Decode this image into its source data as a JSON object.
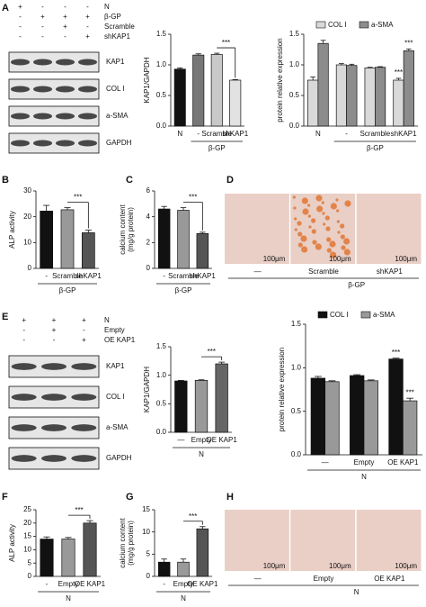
{
  "panel_labels": [
    "A",
    "B",
    "C",
    "D",
    "E",
    "F",
    "G",
    "H"
  ],
  "blot_A": {
    "conditions": [
      {
        "name": "N",
        "signs": [
          "+",
          "-",
          "-",
          "-"
        ]
      },
      {
        "name": "β-GP",
        "signs": [
          "-",
          "+",
          "+",
          "+"
        ]
      },
      {
        "name": "Scramble",
        "signs": [
          "-",
          "-",
          "+",
          "-"
        ]
      },
      {
        "name": "shKAP1",
        "signs": [
          "-",
          "-",
          "-",
          "+"
        ]
      }
    ],
    "bands": [
      "KAP1",
      "COL I",
      "a-SMA",
      "GAPDH"
    ]
  },
  "blot_E": {
    "conditions": [
      {
        "name": "N",
        "signs": [
          "+",
          "+",
          "+"
        ]
      },
      {
        "name": "Empty",
        "signs": [
          "-",
          "+",
          "-"
        ]
      },
      {
        "name": "OE KAP1",
        "signs": [
          "-",
          "-",
          "+"
        ]
      }
    ],
    "bands": [
      "KAP1",
      "COL I",
      "a-SMA",
      "GAPDH"
    ]
  },
  "image_D": {
    "scale": "100μm",
    "labels": [
      "—",
      "Scramble",
      "shKAP1"
    ],
    "group": "β-GP"
  },
  "image_H": {
    "scale": "100μm",
    "labels": [
      "—",
      "Empty",
      "OE KAP1"
    ],
    "group": "N"
  },
  "chart_data": [
    {
      "type": "bar",
      "ylabel": [
        "KAP1/GAPDH"
      ],
      "categories": [
        "N",
        "-",
        "Scramble",
        "shKAP1"
      ],
      "group_label": "β-GP",
      "values": [
        0.93,
        1.16,
        1.17,
        0.75
      ],
      "errors": [
        0.02,
        0.02,
        0.02,
        0.01
      ],
      "colors": [
        "#111111",
        "#777777",
        "#c8c8c8",
        "#e2e2e2"
      ],
      "ylim": [
        0,
        1.5
      ],
      "yticks": [
        {
          "value": 0,
          "label": "0.0"
        },
        {
          "value": 0.5,
          "label": "0.5"
        },
        {
          "value": 1,
          "label": "1.0"
        },
        {
          "value": 1.5,
          "label": "1.5"
        }
      ],
      "annotations": [
        "***"
      ]
    },
    {
      "type": "grouped_bar",
      "ylabel": [
        "protein relative expression"
      ],
      "categories": [
        "N",
        "-",
        "Scramble",
        "shKAP1"
      ],
      "group_label": "β-GP",
      "series": [
        {
          "name": "COL I",
          "color": "#d9d9d9",
          "values": [
            0.75,
            1.0,
            0.95,
            0.75
          ],
          "errors": [
            0.05,
            0.02,
            0.01,
            0.03
          ]
        },
        {
          "name": "a-SMA",
          "color": "#8c8c8c",
          "values": [
            1.35,
            0.99,
            0.96,
            1.23
          ],
          "errors": [
            0.05,
            0.02,
            0.01,
            0.03
          ]
        }
      ],
      "ylim": [
        0,
        1.5
      ],
      "yticks": [
        {
          "value": 0,
          "label": "0.0"
        },
        {
          "value": 0.5,
          "label": "0.5"
        },
        {
          "value": 1,
          "label": "1.0"
        },
        {
          "value": 1.5,
          "label": "1.5"
        }
      ],
      "annotations": [
        "***",
        "***"
      ],
      "legend": "top"
    },
    {
      "type": "bar",
      "ylabel": [
        "ALP activity"
      ],
      "categories": [
        "-",
        "Scramble",
        "shKAP1"
      ],
      "group_label": "β-GP",
      "values": [
        22.2,
        22.7,
        13.8
      ],
      "errors": [
        2.2,
        0.8,
        1.0
      ],
      "colors": [
        "#111111",
        "#999999",
        "#555555"
      ],
      "ylim": [
        0,
        30
      ],
      "yticks": [
        0,
        10,
        20,
        30
      ],
      "annotations": [
        "***"
      ]
    },
    {
      "type": "bar",
      "ylabel": [
        "calcium content",
        "(mg/g protein)"
      ],
      "categories": [
        "-",
        "Scramble",
        "shKAP1"
      ],
      "group_label": "β-GP",
      "values": [
        4.6,
        4.5,
        2.7
      ],
      "errors": [
        0.2,
        0.2,
        0.1
      ],
      "colors": [
        "#111111",
        "#999999",
        "#555555"
      ],
      "ylim": [
        0,
        6
      ],
      "yticks": [
        0,
        2,
        4,
        6
      ],
      "annotations": [
        "***"
      ]
    },
    {
      "type": "bar",
      "ylabel": [
        "KAP1/GAPDH"
      ],
      "categories": [
        "—",
        "Empty",
        "OE KAP1"
      ],
      "group_label": "N",
      "values": [
        0.9,
        0.91,
        1.2
      ],
      "errors": [
        0.01,
        0.01,
        0.03
      ],
      "colors": [
        "#111111",
        "#999999",
        "#666666"
      ],
      "ylim": [
        0,
        1.5
      ],
      "yticks": [
        {
          "value": 0,
          "label": "0.0"
        },
        {
          "value": 0.5,
          "label": "0.5"
        },
        {
          "value": 1,
          "label": "1.0"
        },
        {
          "value": 1.5,
          "label": "1.5"
        }
      ],
      "annotations": [
        "***"
      ]
    },
    {
      "type": "grouped_bar",
      "ylabel": [
        "protein relative expression"
      ],
      "categories": [
        "—",
        "Empty",
        "OE KAP1"
      ],
      "group_label": "N",
      "series": [
        {
          "name": "COL I",
          "color": "#111111",
          "values": [
            0.88,
            0.91,
            1.1
          ],
          "errors": [
            0.02,
            0.01,
            0.01
          ]
        },
        {
          "name": "a-SMA",
          "color": "#999999",
          "values": [
            0.84,
            0.85,
            0.62
          ],
          "errors": [
            0.01,
            0.01,
            0.03
          ]
        }
      ],
      "ylim": [
        0,
        1.5
      ],
      "yticks": [
        {
          "value": 0,
          "label": "0.0"
        },
        {
          "value": 0.5,
          "label": "0.5"
        },
        {
          "value": 1,
          "label": "1.0"
        },
        {
          "value": 1.5,
          "label": "1.5"
        }
      ],
      "annotations": [
        "***",
        "***"
      ],
      "legend": "top"
    },
    {
      "type": "bar",
      "ylabel": [
        "ALP activity"
      ],
      "categories": [
        "-",
        "Empty",
        "OE KAP1"
      ],
      "group_label": "N",
      "values": [
        14,
        14,
        20
      ],
      "errors": [
        0.8,
        0.6,
        0.9
      ],
      "colors": [
        "#111111",
        "#999999",
        "#555555"
      ],
      "ylim": [
        0,
        25
      ],
      "yticks": [
        0,
        5,
        10,
        15,
        20,
        25
      ],
      "annotations": [
        "***"
      ]
    },
    {
      "type": "bar",
      "ylabel": [
        "calcium content",
        "(mg/g protein)"
      ],
      "categories": [
        "-",
        "Empty",
        "OE KAP1"
      ],
      "group_label": "N",
      "values": [
        3.2,
        3.2,
        10.7
      ],
      "errors": [
        0.7,
        0.7,
        0.5
      ],
      "colors": [
        "#111111",
        "#999999",
        "#555555"
      ],
      "ylim": [
        0,
        15
      ],
      "yticks": [
        0,
        5,
        10,
        15
      ],
      "annotations": [
        "***"
      ]
    }
  ]
}
